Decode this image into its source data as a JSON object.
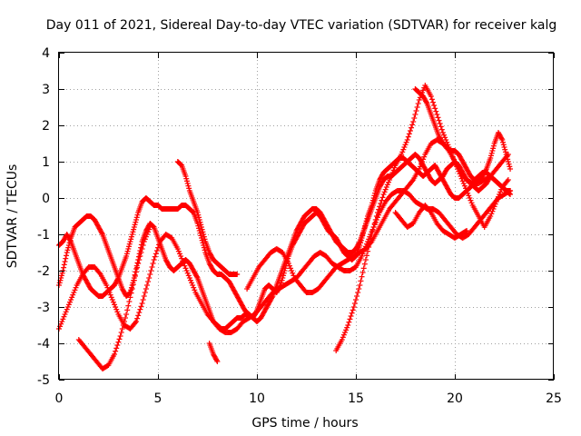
{
  "chart_data": {
    "type": "scatter",
    "title": "Day 011 of 2021, Sidereal Day-to-day VTEC variation (SDTVAR) for receiver kalg",
    "xlabel": "GPS time / hours",
    "ylabel": "SDTVAR / TECUs",
    "xlim": [
      0,
      25
    ],
    "ylim": [
      -5,
      4
    ],
    "xticks": [
      0,
      5,
      10,
      15,
      20,
      25
    ],
    "yticks": [
      -5,
      -4,
      -3,
      -2,
      -1,
      0,
      1,
      2,
      3,
      4
    ],
    "grid": true,
    "marker": "+",
    "color": "#ff0000",
    "series": [
      {
        "x": [
          0.0,
          0.2,
          0.4,
          0.6,
          0.8,
          1.0,
          1.2,
          1.4,
          1.6,
          1.8,
          2.0,
          2.2,
          2.4,
          2.6,
          2.8,
          3.0,
          3.2,
          3.4,
          3.6,
          3.8,
          4.0,
          4.2,
          4.4,
          4.6,
          4.8,
          5.0,
          5.2,
          5.4,
          5.6,
          5.8,
          6.0,
          6.2,
          6.4,
          6.6,
          6.8,
          7.0,
          7.2,
          7.4,
          7.6,
          7.8,
          8.0,
          8.2,
          8.4,
          8.6,
          8.8,
          9.0,
          9.2,
          9.4,
          9.6,
          9.8,
          10.0,
          10.2,
          10.4,
          10.6,
          10.8,
          11.0,
          11.2,
          11.4,
          11.6,
          11.8,
          12.0,
          12.2,
          12.4,
          12.6,
          12.8,
          13.0,
          13.2,
          13.4,
          13.6,
          13.8,
          14.0,
          14.2,
          14.4,
          14.6,
          14.8,
          15.0,
          15.2,
          15.4,
          15.6,
          15.8,
          16.0,
          16.2,
          16.4,
          16.6,
          16.8,
          17.0,
          17.2,
          17.4,
          17.6,
          17.8,
          18.0,
          18.2,
          18.4,
          18.6,
          18.8,
          19.0,
          19.2,
          19.4,
          19.6,
          19.8,
          20.0,
          20.2,
          20.4,
          20.6,
          20.8,
          21.0,
          21.2,
          21.4,
          21.6,
          21.8,
          22.0,
          22.2,
          22.4,
          22.6,
          22.8
        ],
        "y": [
          -1.3,
          -1.2,
          -1.0,
          -1.2,
          -1.5,
          -1.8,
          -2.1,
          -2.3,
          -2.5,
          -2.6,
          -2.7,
          -2.7,
          -2.6,
          -2.5,
          -2.4,
          -2.2,
          -1.9,
          -1.6,
          -1.2,
          -0.8,
          -0.4,
          -0.1,
          0.0,
          -0.1,
          -0.2,
          -0.2,
          -0.3,
          -0.3,
          -0.3,
          -0.3,
          -0.3,
          -0.2,
          -0.2,
          -0.3,
          -0.4,
          -0.7,
          -1.1,
          -1.5,
          -1.8,
          -2.0,
          -2.1,
          -2.1,
          -2.2,
          -2.3,
          -2.5,
          -2.7,
          -2.9,
          -3.1,
          -3.2,
          -3.3,
          -3.1,
          -2.8,
          -2.5,
          -2.4,
          -2.5,
          -2.6,
          -2.4,
          -2.0,
          -1.6,
          -1.3,
          -1.1,
          -0.9,
          -0.7,
          -0.6,
          -0.5,
          -0.4,
          -0.5,
          -0.7,
          -0.9,
          -1.0,
          -1.1,
          -1.3,
          -1.5,
          -1.6,
          -1.7,
          -1.6,
          -1.3,
          -0.9,
          -0.5,
          -0.2,
          0.2,
          0.5,
          0.7,
          0.8,
          0.9,
          1.0,
          1.1,
          1.1,
          1.0,
          0.9,
          0.8,
          0.7,
          0.6,
          0.7,
          0.8,
          0.9,
          0.7,
          0.5,
          0.3,
          0.1,
          0.0,
          0.0,
          0.1,
          0.2,
          0.3,
          0.5,
          0.6,
          0.7,
          0.7,
          0.6,
          0.5,
          0.4,
          0.3,
          0.2,
          0.2
        ]
      },
      {
        "x": [
          0.0,
          0.2,
          0.4,
          0.6,
          0.8,
          1.0,
          1.2,
          1.4,
          1.6,
          1.8,
          2.0,
          2.2,
          2.4,
          2.6,
          2.8,
          3.0,
          3.2,
          3.4,
          3.6,
          3.8,
          4.0,
          4.2,
          4.4,
          4.6,
          4.8,
          5.0,
          5.2,
          5.4,
          5.6,
          5.8,
          6.0,
          6.2,
          6.4,
          6.6,
          6.8,
          7.0,
          7.2,
          7.4,
          7.6,
          7.8,
          8.0,
          8.2,
          8.4,
          8.6,
          8.8,
          9.0,
          9.2,
          9.4,
          9.6,
          9.8,
          10.0,
          10.2,
          10.4,
          10.6,
          10.8,
          11.0,
          11.2,
          11.4,
          11.6,
          11.8,
          12.0,
          12.2,
          12.4,
          12.6,
          12.8,
          13.0,
          13.2,
          13.4,
          13.6,
          13.8,
          14.0,
          14.2,
          14.4,
          14.6,
          14.8,
          15.0,
          15.2,
          15.4,
          15.6,
          15.8,
          16.0,
          16.2,
          16.4,
          16.6,
          16.8,
          17.0,
          17.2,
          17.4,
          17.6,
          17.8,
          18.0,
          18.2,
          18.4,
          18.6,
          18.8,
          19.0,
          19.2,
          19.4,
          19.6,
          19.8,
          20.0,
          20.2,
          20.4,
          20.6,
          20.8,
          21.0,
          21.2,
          21.4,
          21.6,
          21.8,
          22.0,
          22.2,
          22.4,
          22.6,
          22.8
        ],
        "y": [
          -2.4,
          -2.0,
          -1.5,
          -1.1,
          -0.8,
          -0.7,
          -0.6,
          -0.5,
          -0.5,
          -0.6,
          -0.8,
          -1.0,
          -1.3,
          -1.6,
          -1.9,
          -2.2,
          -2.5,
          -2.7,
          -2.6,
          -2.2,
          -1.7,
          -1.2,
          -0.9,
          -0.7,
          -0.8,
          -1.1,
          -1.4,
          -1.7,
          -1.9,
          -2.0,
          -1.9,
          -1.8,
          -1.7,
          -1.8,
          -2.0,
          -2.2,
          -2.5,
          -2.8,
          -3.1,
          -3.4,
          -3.5,
          -3.6,
          -3.6,
          -3.5,
          -3.4,
          -3.3,
          -3.3,
          -3.2,
          -3.2,
          -3.3,
          -3.4,
          -3.3,
          -3.1,
          -2.9,
          -2.7,
          -2.4,
          -2.1,
          -1.8,
          -1.5,
          -1.2,
          -0.9,
          -0.7,
          -0.5,
          -0.4,
          -0.3,
          -0.3,
          -0.4,
          -0.6,
          -0.8,
          -1.0,
          -1.2,
          -1.3,
          -1.4,
          -1.5,
          -1.5,
          -1.4,
          -1.2,
          -0.9,
          -0.6,
          -0.3,
          0.0,
          0.3,
          0.5,
          0.6,
          0.6,
          0.7,
          0.8,
          0.9,
          1.0,
          1.1,
          1.2,
          1.1,
          0.9,
          0.7,
          0.5,
          0.4,
          0.5,
          0.6,
          0.8,
          0.9,
          1.0,
          0.9,
          0.7,
          0.5,
          0.4,
          0.3,
          0.2,
          0.3,
          0.4,
          0.6,
          0.5,
          0.4,
          0.3,
          0.2,
          0.1
        ]
      },
      {
        "x": [
          0.0,
          0.3,
          0.6,
          0.9,
          1.2,
          1.5,
          1.8,
          2.1,
          2.4,
          2.7,
          3.0,
          3.3,
          3.6,
          3.9,
          4.2,
          4.5,
          4.8,
          5.1,
          5.4,
          5.7,
          6.0,
          6.3,
          6.6,
          6.9,
          7.2,
          7.5,
          7.8,
          8.1,
          8.4,
          8.7,
          9.0,
          9.3,
          9.6,
          9.9,
          10.2,
          10.5,
          10.8,
          11.1,
          11.4,
          11.7,
          12.0,
          12.3,
          12.6,
          12.9,
          13.2,
          13.5,
          13.8,
          14.1,
          14.4,
          14.7,
          15.0,
          15.3,
          15.6,
          15.9,
          16.2,
          16.5,
          16.8,
          17.1,
          17.4,
          17.7,
          18.0,
          18.3,
          18.6,
          18.9,
          19.2,
          19.5,
          19.8,
          20.1,
          20.4,
          20.7,
          21.0,
          21.3,
          21.6,
          21.9,
          22.2,
          22.5,
          22.8
        ],
        "y": [
          -3.6,
          -3.2,
          -2.8,
          -2.4,
          -2.1,
          -1.9,
          -1.9,
          -2.1,
          -2.4,
          -2.8,
          -3.2,
          -3.5,
          -3.6,
          -3.4,
          -2.9,
          -2.3,
          -1.7,
          -1.2,
          -1.0,
          -1.1,
          -1.4,
          -1.8,
          -2.2,
          -2.6,
          -2.9,
          -3.2,
          -3.4,
          -3.6,
          -3.7,
          -3.7,
          -3.6,
          -3.4,
          -3.3,
          -3.2,
          -3.0,
          -2.8,
          -2.6,
          -2.5,
          -2.4,
          -2.3,
          -2.2,
          -2.0,
          -1.8,
          -1.6,
          -1.5,
          -1.6,
          -1.8,
          -1.9,
          -2.0,
          -2.0,
          -1.9,
          -1.6,
          -1.2,
          -0.8,
          -0.4,
          -0.1,
          0.1,
          0.2,
          0.2,
          0.1,
          -0.1,
          -0.2,
          -0.3,
          -0.3,
          -0.4,
          -0.6,
          -0.8,
          -1.0,
          -1.1,
          -1.0,
          -0.8,
          -0.6,
          -0.4,
          -0.2,
          0.0,
          0.1,
          0.2
        ]
      },
      {
        "x": [
          1.0,
          1.3,
          1.6,
          1.9,
          2.2,
          2.5,
          2.8,
          3.1,
          3.4,
          3.7,
          4.0,
          4.3,
          4.6
        ],
        "y": [
          -3.9,
          -4.1,
          -4.3,
          -4.5,
          -4.7,
          -4.6,
          -4.3,
          -3.8,
          -3.2,
          -2.5,
          -1.8,
          -1.2,
          -0.8
        ]
      },
      {
        "x": [
          6.0,
          6.2,
          6.4,
          6.6,
          6.8,
          7.0,
          7.2,
          7.4,
          7.6,
          7.8,
          8.0,
          8.2,
          8.4,
          8.6,
          8.8,
          9.0
        ],
        "y": [
          1.0,
          0.9,
          0.6,
          0.2,
          -0.1,
          -0.4,
          -0.8,
          -1.2,
          -1.5,
          -1.7,
          -1.8,
          -1.9,
          -2.0,
          -2.1,
          -2.1,
          -2.1
        ]
      },
      {
        "x": [
          7.6,
          7.8,
          8.0
        ],
        "y": [
          -4.0,
          -4.3,
          -4.5
        ]
      },
      {
        "x": [
          9.5,
          9.8,
          10.1,
          10.4,
          10.7,
          11.0,
          11.3,
          11.6,
          11.9,
          12.2,
          12.5,
          12.8,
          13.1,
          13.4,
          13.7,
          14.0,
          14.3,
          14.6,
          14.9,
          15.2,
          15.5,
          15.8,
          16.1,
          16.4,
          16.7,
          17.0,
          17.3,
          17.6,
          17.9,
          18.2,
          18.5,
          18.8,
          19.1,
          19.4,
          19.7,
          20.0,
          20.3,
          20.6,
          20.9,
          21.2,
          21.5,
          21.8,
          22.1,
          22.4,
          22.7
        ],
        "y": [
          -2.5,
          -2.2,
          -1.9,
          -1.7,
          -1.5,
          -1.4,
          -1.5,
          -1.8,
          -2.2,
          -2.4,
          -2.6,
          -2.6,
          -2.5,
          -2.3,
          -2.1,
          -1.9,
          -1.8,
          -1.7,
          -1.6,
          -1.5,
          -1.4,
          -1.2,
          -0.9,
          -0.6,
          -0.3,
          -0.1,
          0.1,
          0.3,
          0.5,
          0.8,
          1.2,
          1.5,
          1.6,
          1.5,
          1.3,
          1.0,
          0.7,
          0.5,
          0.4,
          0.4,
          0.5,
          0.6,
          0.8,
          1.0,
          1.2
        ]
      },
      {
        "x": [
          14.0,
          14.3,
          14.6,
          14.9,
          15.2,
          15.5,
          15.8,
          16.1,
          16.4,
          16.7,
          17.0,
          17.3,
          17.6,
          17.9,
          18.2,
          18.5,
          18.8,
          19.1,
          19.4,
          19.7,
          20.0,
          20.3,
          20.6,
          20.9,
          21.2,
          21.5,
          21.8,
          22.1,
          22.4,
          22.7
        ],
        "y": [
          -4.2,
          -3.9,
          -3.5,
          -3.0,
          -2.4,
          -1.7,
          -1.0,
          -0.4,
          0.1,
          0.5,
          0.9,
          1.2,
          1.6,
          2.1,
          2.7,
          3.1,
          2.8,
          2.3,
          1.8,
          1.4,
          1.0,
          0.6,
          0.2,
          -0.2,
          -0.5,
          -0.8,
          -0.5,
          -0.1,
          0.3,
          0.5
        ]
      },
      {
        "x": [
          18.0,
          18.2,
          18.4,
          18.6,
          18.8,
          19.0,
          19.2,
          19.4,
          19.6,
          19.8,
          20.0,
          20.2,
          20.4,
          20.6,
          20.8,
          21.0,
          21.2,
          21.4,
          21.6,
          21.8,
          22.0,
          22.2,
          22.4,
          22.6,
          22.8
        ],
        "y": [
          3.0,
          2.9,
          2.8,
          2.6,
          2.3,
          2.0,
          1.7,
          1.5,
          1.4,
          1.3,
          1.3,
          1.2,
          1.0,
          0.8,
          0.6,
          0.5,
          0.5,
          0.6,
          0.8,
          1.1,
          1.5,
          1.8,
          1.6,
          1.2,
          0.8
        ]
      },
      {
        "x": [
          17.0,
          17.3,
          17.6,
          17.9,
          18.2,
          18.5,
          18.8,
          19.1,
          19.4,
          19.7,
          20.0,
          20.3,
          20.6
        ],
        "y": [
          -0.4,
          -0.6,
          -0.8,
          -0.7,
          -0.4,
          -0.2,
          -0.4,
          -0.7,
          -0.9,
          -1.0,
          -1.1,
          -1.0,
          -0.9
        ]
      }
    ]
  }
}
